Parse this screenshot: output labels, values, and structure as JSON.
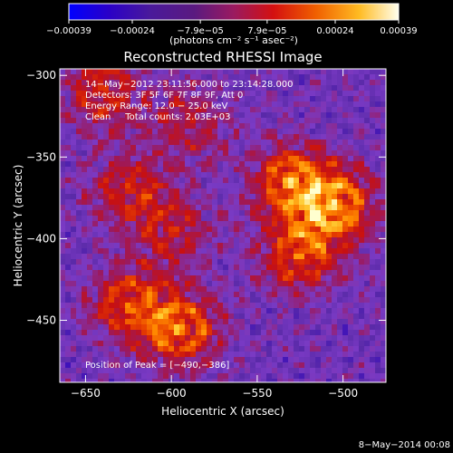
{
  "chart_data": {
    "type": "heatmap",
    "title": "Reconstructed RHESSI Image",
    "xlabel": "Heliocentric X (arcsec)",
    "ylabel": "Heliocentric Y (arcsec)",
    "xlim": [
      -665,
      -475
    ],
    "ylim": [
      -488,
      -296
    ],
    "x_ticks": [
      -650,
      -600,
      -550,
      -500
    ],
    "x_tick_labels": [
      "−650",
      "−600",
      "−550",
      "−500"
    ],
    "y_ticks": [
      -300,
      -350,
      -400,
      -450
    ],
    "y_tick_labels": [
      "−300",
      "−350",
      "−400",
      "−450"
    ],
    "colorbar": {
      "min": -0.00039,
      "max": 0.00039,
      "ticks": [
        -0.00039,
        -0.00024,
        -7.9e-05,
        7.9e-05,
        0.00024,
        0.00039
      ],
      "tick_labels": [
        "−0.00039",
        "−0.00024",
        "−7.9e−05",
        "7.9e−05",
        "0.00024",
        "0.00039"
      ],
      "units_label": "(photons cm⁻² s⁻¹ asec⁻²)",
      "colormap": [
        "#0000ff",
        "#2a00c8",
        "#5a2aa8",
        "#7a3ac4",
        "#9a1a60",
        "#c81010",
        "#e84000",
        "#ff8800",
        "#ffcc33",
        "#ffffd0"
      ]
    },
    "annotations": [
      "14−May−2012 23:11:56.000 to 23:14:28.000",
      "Detectors: 3F 5F 6F 7F 8F 9F, Att 0",
      "Energy Range: 12.0 − 25.0 keV",
      "Clean     Total counts: 2.03E+03"
    ],
    "peak_label": "Position of Peak = [−490,−386]",
    "peak_position": [
      -490,
      -386
    ],
    "sources": [
      {
        "x": -505,
        "y": -380,
        "intensity": 1.0
      },
      {
        "x": -530,
        "y": -365,
        "intensity": 0.85
      },
      {
        "x": -525,
        "y": -410,
        "intensity": 0.75
      },
      {
        "x": -595,
        "y": -455,
        "intensity": 0.9
      },
      {
        "x": -625,
        "y": -440,
        "intensity": 0.7
      },
      {
        "x": -640,
        "y": -310,
        "intensity": 0.6
      },
      {
        "x": -625,
        "y": -370,
        "intensity": 0.55
      },
      {
        "x": -590,
        "y": -330,
        "intensity": 0.45
      },
      {
        "x": -600,
        "y": -395,
        "intensity": 0.5
      }
    ]
  },
  "footer_date": "8−May−2014 00:08"
}
